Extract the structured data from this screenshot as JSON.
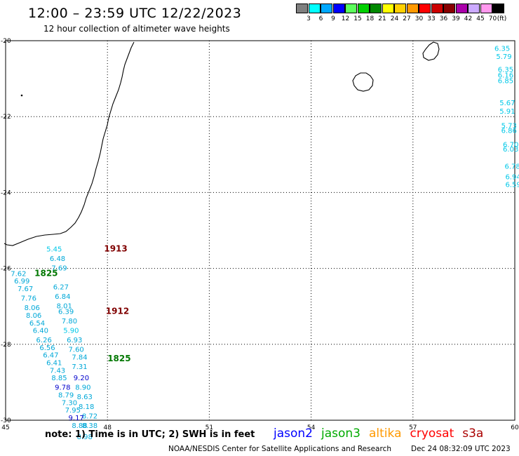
{
  "header": {
    "title": "12:00 – 23:59 UTC 12/22/2023",
    "subtitle": "12 hour collection of altimeter wave heights"
  },
  "colorbar": {
    "unit": "(ft)",
    "bins": [
      {
        "label": "3",
        "color": "#7f7f7f"
      },
      {
        "label": "6",
        "color": "#00ffff"
      },
      {
        "label": "9",
        "color": "#00a8ff"
      },
      {
        "label": "12",
        "color": "#0000ff"
      },
      {
        "label": "15",
        "color": "#5cff5c"
      },
      {
        "label": "18",
        "color": "#00d000"
      },
      {
        "label": "21",
        "color": "#008800"
      },
      {
        "label": "24",
        "color": "#ffff00"
      },
      {
        "label": "27",
        "color": "#ffd000"
      },
      {
        "label": "30",
        "color": "#ff9900"
      },
      {
        "label": "33",
        "color": "#ff0000"
      },
      {
        "label": "36",
        "color": "#cc0000"
      },
      {
        "label": "39",
        "color": "#880000"
      },
      {
        "label": "42",
        "color": "#aa00aa"
      },
      {
        "label": "45",
        "color": "#ccaaff"
      },
      {
        "label": "70",
        "color": "#ff99ee"
      },
      {
        "label": "",
        "color": "#000000"
      }
    ]
  },
  "map_frame": {
    "lat_ticks": [
      "-20",
      "-22",
      "-24",
      "-26",
      "-28",
      "-30"
    ],
    "lon_ticks": [
      "45",
      "48",
      "51",
      "54",
      "57",
      "60"
    ]
  },
  "pass_labels": [
    {
      "text": "1913",
      "lon": 47.9,
      "lat": -25.55,
      "color": "#800000"
    },
    {
      "text": "1825",
      "lon": 45.85,
      "lat": -26.2,
      "color": "#007700"
    },
    {
      "text": "1912",
      "lon": 47.95,
      "lat": -27.2,
      "color": "#800000"
    },
    {
      "text": "1825",
      "lon": 48.0,
      "lat": -28.45,
      "color": "#007700"
    }
  ],
  "wave_values": [
    {
      "text": "5.45",
      "lon": 46.2,
      "lat": -25.55,
      "color": "#00c8e8"
    },
    {
      "text": "6.48",
      "lon": 46.3,
      "lat": -25.8,
      "color": "#00a8d8"
    },
    {
      "text": "7.69",
      "lon": 46.35,
      "lat": -26.05,
      "color": "#00a8d8"
    },
    {
      "text": "7.62",
      "lon": 45.15,
      "lat": -26.2,
      "color": "#00a8d8"
    },
    {
      "text": "6.27",
      "lon": 46.4,
      "lat": -26.55,
      "color": "#00a8d8"
    },
    {
      "text": "6.99",
      "lon": 45.25,
      "lat": -26.4,
      "color": "#00a8d8"
    },
    {
      "text": "7.67",
      "lon": 45.35,
      "lat": -26.6,
      "color": "#00a8d8"
    },
    {
      "text": "6.84",
      "lon": 46.45,
      "lat": -26.8,
      "color": "#00a8d8"
    },
    {
      "text": "7.76",
      "lon": 45.45,
      "lat": -26.85,
      "color": "#00a8d8"
    },
    {
      "text": "8.01",
      "lon": 46.5,
      "lat": -27.05,
      "color": "#00a8d8"
    },
    {
      "text": "8.06",
      "lon": 45.55,
      "lat": -27.1,
      "color": "#00a8d8"
    },
    {
      "text": "6.39",
      "lon": 46.55,
      "lat": -27.2,
      "color": "#00a8d8"
    },
    {
      "text": "8.06",
      "lon": 45.6,
      "lat": -27.3,
      "color": "#00a8d8"
    },
    {
      "text": "7.80",
      "lon": 46.65,
      "lat": -27.45,
      "color": "#00a8d8"
    },
    {
      "text": "6.54",
      "lon": 45.7,
      "lat": -27.5,
      "color": "#00a8d8"
    },
    {
      "text": "5.90",
      "lon": 46.7,
      "lat": -27.7,
      "color": "#00c8e8"
    },
    {
      "text": "6.40",
      "lon": 45.8,
      "lat": -27.7,
      "color": "#00a8d8"
    },
    {
      "text": "6.93",
      "lon": 46.8,
      "lat": -27.95,
      "color": "#00a8d8"
    },
    {
      "text": "6.26",
      "lon": 45.9,
      "lat": -27.95,
      "color": "#00a8d8"
    },
    {
      "text": "6.56",
      "lon": 46.0,
      "lat": -28.15,
      "color": "#00a8d8"
    },
    {
      "text": "7.60",
      "lon": 46.85,
      "lat": -28.2,
      "color": "#00a8d8"
    },
    {
      "text": "6.47",
      "lon": 46.1,
      "lat": -28.35,
      "color": "#00a8d8"
    },
    {
      "text": "7.84",
      "lon": 46.95,
      "lat": -28.4,
      "color": "#00a8d8"
    },
    {
      "text": "6.41",
      "lon": 46.2,
      "lat": -28.55,
      "color": "#00a8d8"
    },
    {
      "text": "7.31",
      "lon": 46.95,
      "lat": -28.65,
      "color": "#00a8d8"
    },
    {
      "text": "7.43",
      "lon": 46.3,
      "lat": -28.75,
      "color": "#00a8d8"
    },
    {
      "text": "8.85",
      "lon": 46.35,
      "lat": -28.95,
      "color": "#00a8d8"
    },
    {
      "text": "9.20",
      "lon": 47.0,
      "lat": -28.95,
      "color": "#0000cc"
    },
    {
      "text": "9.78",
      "lon": 46.45,
      "lat": -29.2,
      "color": "#0000cc"
    },
    {
      "text": "8.90",
      "lon": 47.05,
      "lat": -29.2,
      "color": "#00a8d8"
    },
    {
      "text": "8.79",
      "lon": 46.55,
      "lat": -29.4,
      "color": "#00a8d8"
    },
    {
      "text": "8.63",
      "lon": 47.1,
      "lat": -29.45,
      "color": "#00a8d8"
    },
    {
      "text": "7.30",
      "lon": 46.65,
      "lat": -29.6,
      "color": "#00a8d8"
    },
    {
      "text": "8.18",
      "lon": 47.15,
      "lat": -29.7,
      "color": "#00a8d8"
    },
    {
      "text": "7.95",
      "lon": 46.75,
      "lat": -29.8,
      "color": "#00a8d8"
    },
    {
      "text": "8.72",
      "lon": 47.25,
      "lat": -29.95,
      "color": "#00a8d8"
    },
    {
      "text": "9.17",
      "lon": 46.85,
      "lat": -30.0,
      "color": "#0000cc"
    },
    {
      "text": "8.88",
      "lon": 46.95,
      "lat": -30.2,
      "color": "#00a8d8"
    },
    {
      "text": "8.38",
      "lon": 47.25,
      "lat": -30.2,
      "color": "#00a8d8"
    },
    {
      "text": "8.98",
      "lon": 47.1,
      "lat": -30.5,
      "color": "#00a8d8"
    },
    {
      "text": "6.35",
      "lon": 59.4,
      "lat": -20.27,
      "color": "#00c8e8"
    },
    {
      "text": "5.79",
      "lon": 59.45,
      "lat": -20.48,
      "color": "#00c8e8"
    },
    {
      "text": "6.35",
      "lon": 59.5,
      "lat": -20.82,
      "color": "#00c8e8"
    },
    {
      "text": "6.16",
      "lon": 59.5,
      "lat": -20.97,
      "color": "#00c8e8"
    },
    {
      "text": "6.85",
      "lon": 59.5,
      "lat": -21.12,
      "color": "#00c8e8"
    },
    {
      "text": "5.67",
      "lon": 59.55,
      "lat": -21.7,
      "color": "#00c8e8"
    },
    {
      "text": "5.91",
      "lon": 59.55,
      "lat": -21.92,
      "color": "#00c8e8"
    },
    {
      "text": "5.73",
      "lon": 59.6,
      "lat": -22.3,
      "color": "#00c8e8"
    },
    {
      "text": "6.86",
      "lon": 59.6,
      "lat": -22.43,
      "color": "#00c8e8"
    },
    {
      "text": "6.70",
      "lon": 59.65,
      "lat": -22.8,
      "color": "#00c8e8"
    },
    {
      "text": "6.03",
      "lon": 59.65,
      "lat": -22.92,
      "color": "#00c8e8"
    },
    {
      "text": "6.78",
      "lon": 59.7,
      "lat": -23.37,
      "color": "#00c8e8"
    },
    {
      "text": "6.94",
      "lon": 59.72,
      "lat": -23.65,
      "color": "#00c8e8"
    },
    {
      "text": "6.59",
      "lon": 59.72,
      "lat": -23.85,
      "color": "#00c8e8"
    }
  ],
  "notes": {
    "note": "note:  1) Time is in UTC; 2) SWH is in feet",
    "credit": "NOAA/NESDIS Center for Satellite Applications and Research",
    "timestamp": "Dec 24 08:32:09 UTC 2023"
  },
  "missions": [
    {
      "name": "jason2",
      "color": "#0000ff"
    },
    {
      "name": "jason3",
      "color": "#00aa00"
    },
    {
      "name": "altika",
      "color": "#ff9900"
    },
    {
      "name": "cryosat",
      "color": "#ff0000"
    },
    {
      "name": "s3a",
      "color": "#aa0000"
    }
  ]
}
